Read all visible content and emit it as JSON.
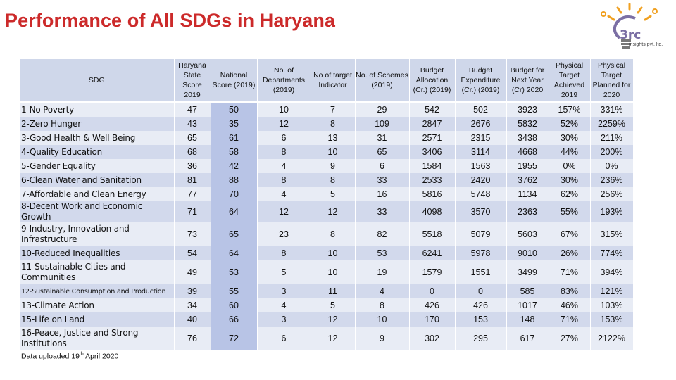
{
  "title": "Performance of All SDGs in Haryana",
  "logo": {
    "name": "i3rc",
    "brand": "3rc",
    "subtitle": "insights pvt. ltd."
  },
  "colors": {
    "title": "#cc2a2a",
    "header_bg": "#cfd7ea",
    "row_light": "#e8ecf5",
    "row_dark": "#d2d9ec",
    "national_col": "#b8c4e6"
  },
  "headers": {
    "sdg": "SDG",
    "haryana": "Haryana State Score 2019",
    "national": "National Score (2019)",
    "departments": "No. of Departments (2019)",
    "indicators": "No of target Indicator",
    "schemes": "No. of Schemes (2019)",
    "budget_alloc": "Budget Allocation (Cr.) (2019)",
    "budget_exp": "Budget Expenditure (Cr.) (2019)",
    "budget_next": "Budget for Next Year (Cr) 2020",
    "phys_achieved": "Physical Target Achieved 2019",
    "phys_planned": "Physical Target Planned for 2020"
  },
  "rows": [
    {
      "sdg": "1-No Poverty",
      "haryana": "47",
      "national": "50",
      "departments": "10",
      "indicators": "7",
      "schemes": "29",
      "budget_alloc": "542",
      "budget_exp": "502",
      "budget_next": "3923",
      "phys_achieved": "157%",
      "phys_planned": "331%"
    },
    {
      "sdg": "2-Zero Hunger",
      "haryana": "43",
      "national": "35",
      "departments": "12",
      "indicators": "8",
      "schemes": "109",
      "budget_alloc": "2847",
      "budget_exp": "2676",
      "budget_next": "5832",
      "phys_achieved": "52%",
      "phys_planned": "2259%"
    },
    {
      "sdg": "3-Good Health & Well Being",
      "haryana": "65",
      "national": "61",
      "departments": "6",
      "indicators": "13",
      "schemes": "31",
      "budget_alloc": "2571",
      "budget_exp": "2315",
      "budget_next": "3438",
      "phys_achieved": "30%",
      "phys_planned": "211%"
    },
    {
      "sdg": "4-Quality Education",
      "haryana": "68",
      "national": "58",
      "departments": "8",
      "indicators": "10",
      "schemes": "65",
      "budget_alloc": "3406",
      "budget_exp": "3114",
      "budget_next": "4668",
      "phys_achieved": "44%",
      "phys_planned": "200%"
    },
    {
      "sdg": "5-Gender Equality",
      "haryana": "36",
      "national": "42",
      "departments": "4",
      "indicators": "9",
      "schemes": "6",
      "budget_alloc": "1584",
      "budget_exp": "1563",
      "budget_next": "1955",
      "phys_achieved": "0%",
      "phys_planned": "0%"
    },
    {
      "sdg": "6-Clean Water and Sanitation",
      "haryana": "81",
      "national": "88",
      "departments": "8",
      "indicators": "8",
      "schemes": "33",
      "budget_alloc": "2533",
      "budget_exp": "2420",
      "budget_next": "3762",
      "phys_achieved": "30%",
      "phys_planned": "236%"
    },
    {
      "sdg": "7-Affordable and Clean Energy",
      "haryana": "77",
      "national": "70",
      "departments": "4",
      "indicators": "5",
      "schemes": "16",
      "budget_alloc": "5816",
      "budget_exp": "5748",
      "budget_next": "1134",
      "phys_achieved": "62%",
      "phys_planned": "256%"
    },
    {
      "sdg": "8-Decent Work and Economic Growth",
      "haryana": "71",
      "national": "64",
      "departments": "12",
      "indicators": "12",
      "schemes": "33",
      "budget_alloc": "4098",
      "budget_exp": "3570",
      "budget_next": "2363",
      "phys_achieved": "55%",
      "phys_planned": "193%"
    },
    {
      "sdg": "9-Industry, Innovation and Infrastructure",
      "haryana": "73",
      "national": "65",
      "departments": "23",
      "indicators": "8",
      "schemes": "82",
      "budget_alloc": "5518",
      "budget_exp": "5079",
      "budget_next": "5603",
      "phys_achieved": "67%",
      "phys_planned": "315%"
    },
    {
      "sdg": "10-Reduced Inequalities",
      "haryana": "54",
      "national": "64",
      "departments": "8",
      "indicators": "10",
      "schemes": "53",
      "budget_alloc": "6241",
      "budget_exp": "5978",
      "budget_next": "9010",
      "phys_achieved": "26%",
      "phys_planned": "774%"
    },
    {
      "sdg": "11-Sustainable Cities and Communities",
      "haryana": "49",
      "national": "53",
      "departments": "5",
      "indicators": "10",
      "schemes": "19",
      "budget_alloc": "1579",
      "budget_exp": "1551",
      "budget_next": "3499",
      "phys_achieved": "71%",
      "phys_planned": "394%"
    },
    {
      "sdg": "12-Sustainable Consumption and Production",
      "haryana": "39",
      "national": "55",
      "departments": "3",
      "indicators": "11",
      "schemes": "4",
      "budget_alloc": "0",
      "budget_exp": "0",
      "budget_next": "585",
      "phys_achieved": "83%",
      "phys_planned": "121%"
    },
    {
      "sdg": "13-Climate Action",
      "haryana": "34",
      "national": "60",
      "departments": "4",
      "indicators": "5",
      "schemes": "8",
      "budget_alloc": "426",
      "budget_exp": "426",
      "budget_next": "1017",
      "phys_achieved": "46%",
      "phys_planned": "103%"
    },
    {
      "sdg": "15-Life on Land",
      "haryana": "40",
      "national": "66",
      "departments": "3",
      "indicators": "12",
      "schemes": "10",
      "budget_alloc": "170",
      "budget_exp": "153",
      "budget_next": "148",
      "phys_achieved": "71%",
      "phys_planned": "153%"
    },
    {
      "sdg": "16-Peace, Justice and Strong Institutions",
      "haryana": "76",
      "national": "72",
      "departments": "6",
      "indicators": "12",
      "schemes": "9",
      "budget_alloc": "302",
      "budget_exp": "295",
      "budget_next": "617",
      "phys_achieved": "27%",
      "phys_planned": "2122%"
    }
  ],
  "footnote": {
    "prefix": "Data uploaded 19",
    "sup": "th",
    "suffix": " April 2020"
  }
}
